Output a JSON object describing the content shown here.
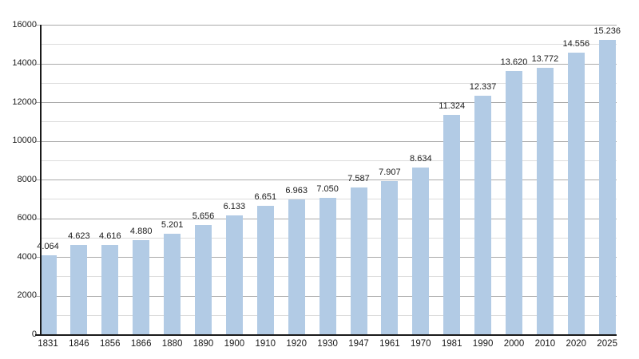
{
  "chart_data": {
    "type": "bar",
    "title": "",
    "categories": [
      "1831",
      "1846",
      "1856",
      "1866",
      "1880",
      "1890",
      "1900",
      "1910",
      "1920",
      "1930",
      "1947",
      "1961",
      "1970",
      "1981",
      "1990",
      "2000",
      "2010",
      "2020",
      "2025"
    ],
    "values": [
      4064,
      4623,
      4616,
      4880,
      5201,
      5656,
      6133,
      6651,
      6963,
      7050,
      7587,
      7907,
      8634,
      11324,
      12337,
      13620,
      13772,
      14556,
      15236
    ],
    "bar_labels": [
      "4.064",
      "4.623",
      "4.616",
      "4.880",
      "5.201",
      "5.656",
      "6.133",
      "6.651",
      "6.963",
      "7.050",
      "7.587",
      "7.907",
      "8.634",
      "11.324",
      "12.337",
      "13.620",
      "13.772",
      "14.556",
      "15.236"
    ],
    "xlabel": "",
    "ylabel": "",
    "ylim": [
      0,
      16000
    ],
    "y_major_ticks": [
      0,
      2000,
      4000,
      6000,
      8000,
      10000,
      12000,
      14000,
      16000
    ],
    "y_major_tick_labels": [
      "0",
      "2000",
      "4000",
      "6000",
      "8000",
      "10000",
      "12000",
      "14000",
      "16000"
    ],
    "y_minor_step": 1000,
    "grid": "horizontal",
    "legend_position": "none",
    "colors": {
      "bar": "#b2cbe5",
      "major_grid": "#aaaaaa",
      "minor_grid": "#dcdcdc",
      "axis": "#1a1a1a",
      "text": "#1a1a1a",
      "background": "#ffffff"
    }
  }
}
